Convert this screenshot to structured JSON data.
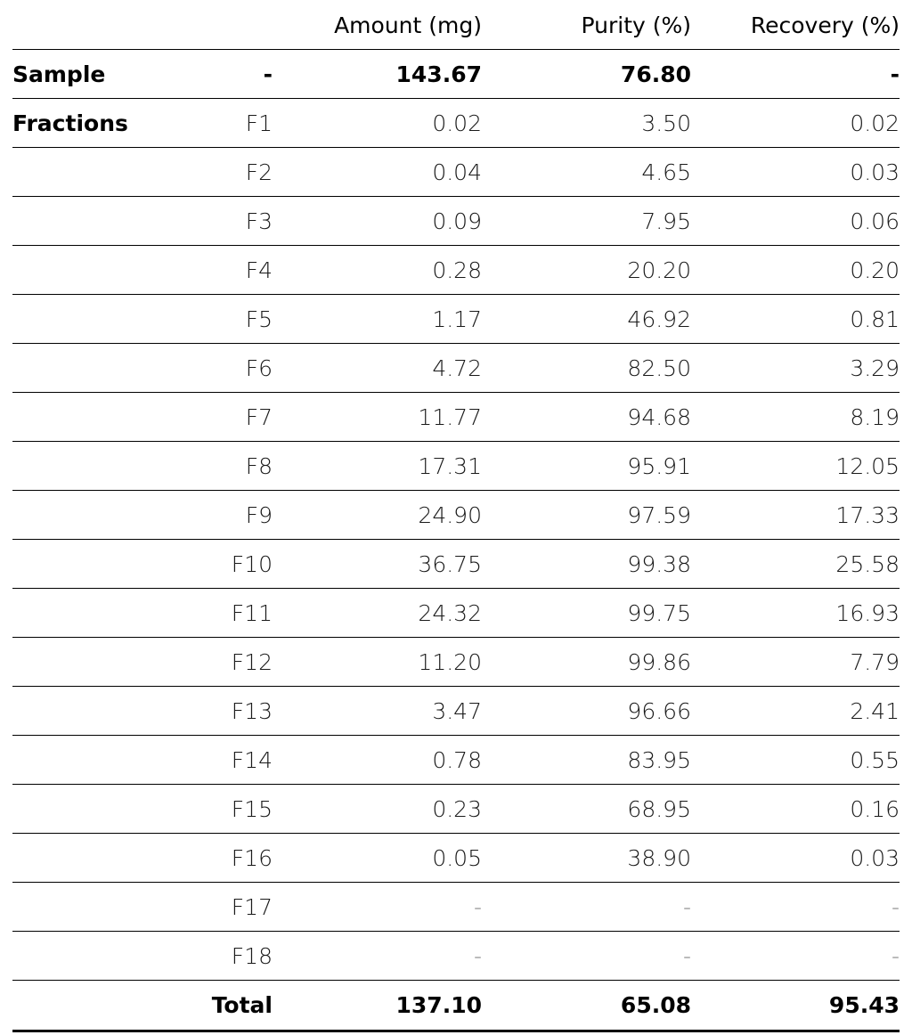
{
  "table": {
    "headers": [
      "",
      "",
      "Amount (mg)",
      "Purity (%)",
      "Recovery (%)"
    ],
    "sample": {
      "label": "Sample",
      "fraction": "-",
      "amount": "143.67",
      "purity": "76.80",
      "recovery": "-"
    },
    "fractions_label": "Fractions",
    "rows": [
      {
        "fraction": "F1",
        "amount": "0.02",
        "purity": "3.50",
        "recovery": "0.02"
      },
      {
        "fraction": "F2",
        "amount": "0.04",
        "purity": "4.65",
        "recovery": "0.03"
      },
      {
        "fraction": "F3",
        "amount": "0.09",
        "purity": "7.95",
        "recovery": "0.06"
      },
      {
        "fraction": "F4",
        "amount": "0.28",
        "purity": "20.20",
        "recovery": "0.20"
      },
      {
        "fraction": "F5",
        "amount": "1.17",
        "purity": "46.92",
        "recovery": "0.81"
      },
      {
        "fraction": "F6",
        "amount": "4.72",
        "purity": "82.50",
        "recovery": "3.29"
      },
      {
        "fraction": "F7",
        "amount": "11.77",
        "purity": "94.68",
        "recovery": "8.19"
      },
      {
        "fraction": "F8",
        "amount": "17.31",
        "purity": "95.91",
        "recovery": "12.05"
      },
      {
        "fraction": "F9",
        "amount": "24.90",
        "purity": "97.59",
        "recovery": "17.33"
      },
      {
        "fraction": "F10",
        "amount": "36.75",
        "purity": "99.38",
        "recovery": "25.58"
      },
      {
        "fraction": "F11",
        "amount": "24.32",
        "purity": "99.75",
        "recovery": "16.93"
      },
      {
        "fraction": "F12",
        "amount": "11.20",
        "purity": "99.86",
        "recovery": "7.79"
      },
      {
        "fraction": "F13",
        "amount": "3.47",
        "purity": "96.66",
        "recovery": "2.41"
      },
      {
        "fraction": "F14",
        "amount": "0.78",
        "purity": "83.95",
        "recovery": "0.55"
      },
      {
        "fraction": "F15",
        "amount": "0.23",
        "purity": "68.95",
        "recovery": "0.16"
      },
      {
        "fraction": "F16",
        "amount": "0.05",
        "purity": "38.90",
        "recovery": "0.03"
      },
      {
        "fraction": "F17",
        "amount": "-",
        "purity": "-",
        "recovery": "-"
      },
      {
        "fraction": "F18",
        "amount": "-",
        "purity": "-",
        "recovery": "-"
      }
    ],
    "total": {
      "label": "Total",
      "amount": "137.10",
      "purity": "65.08",
      "recovery": "95.43"
    }
  }
}
